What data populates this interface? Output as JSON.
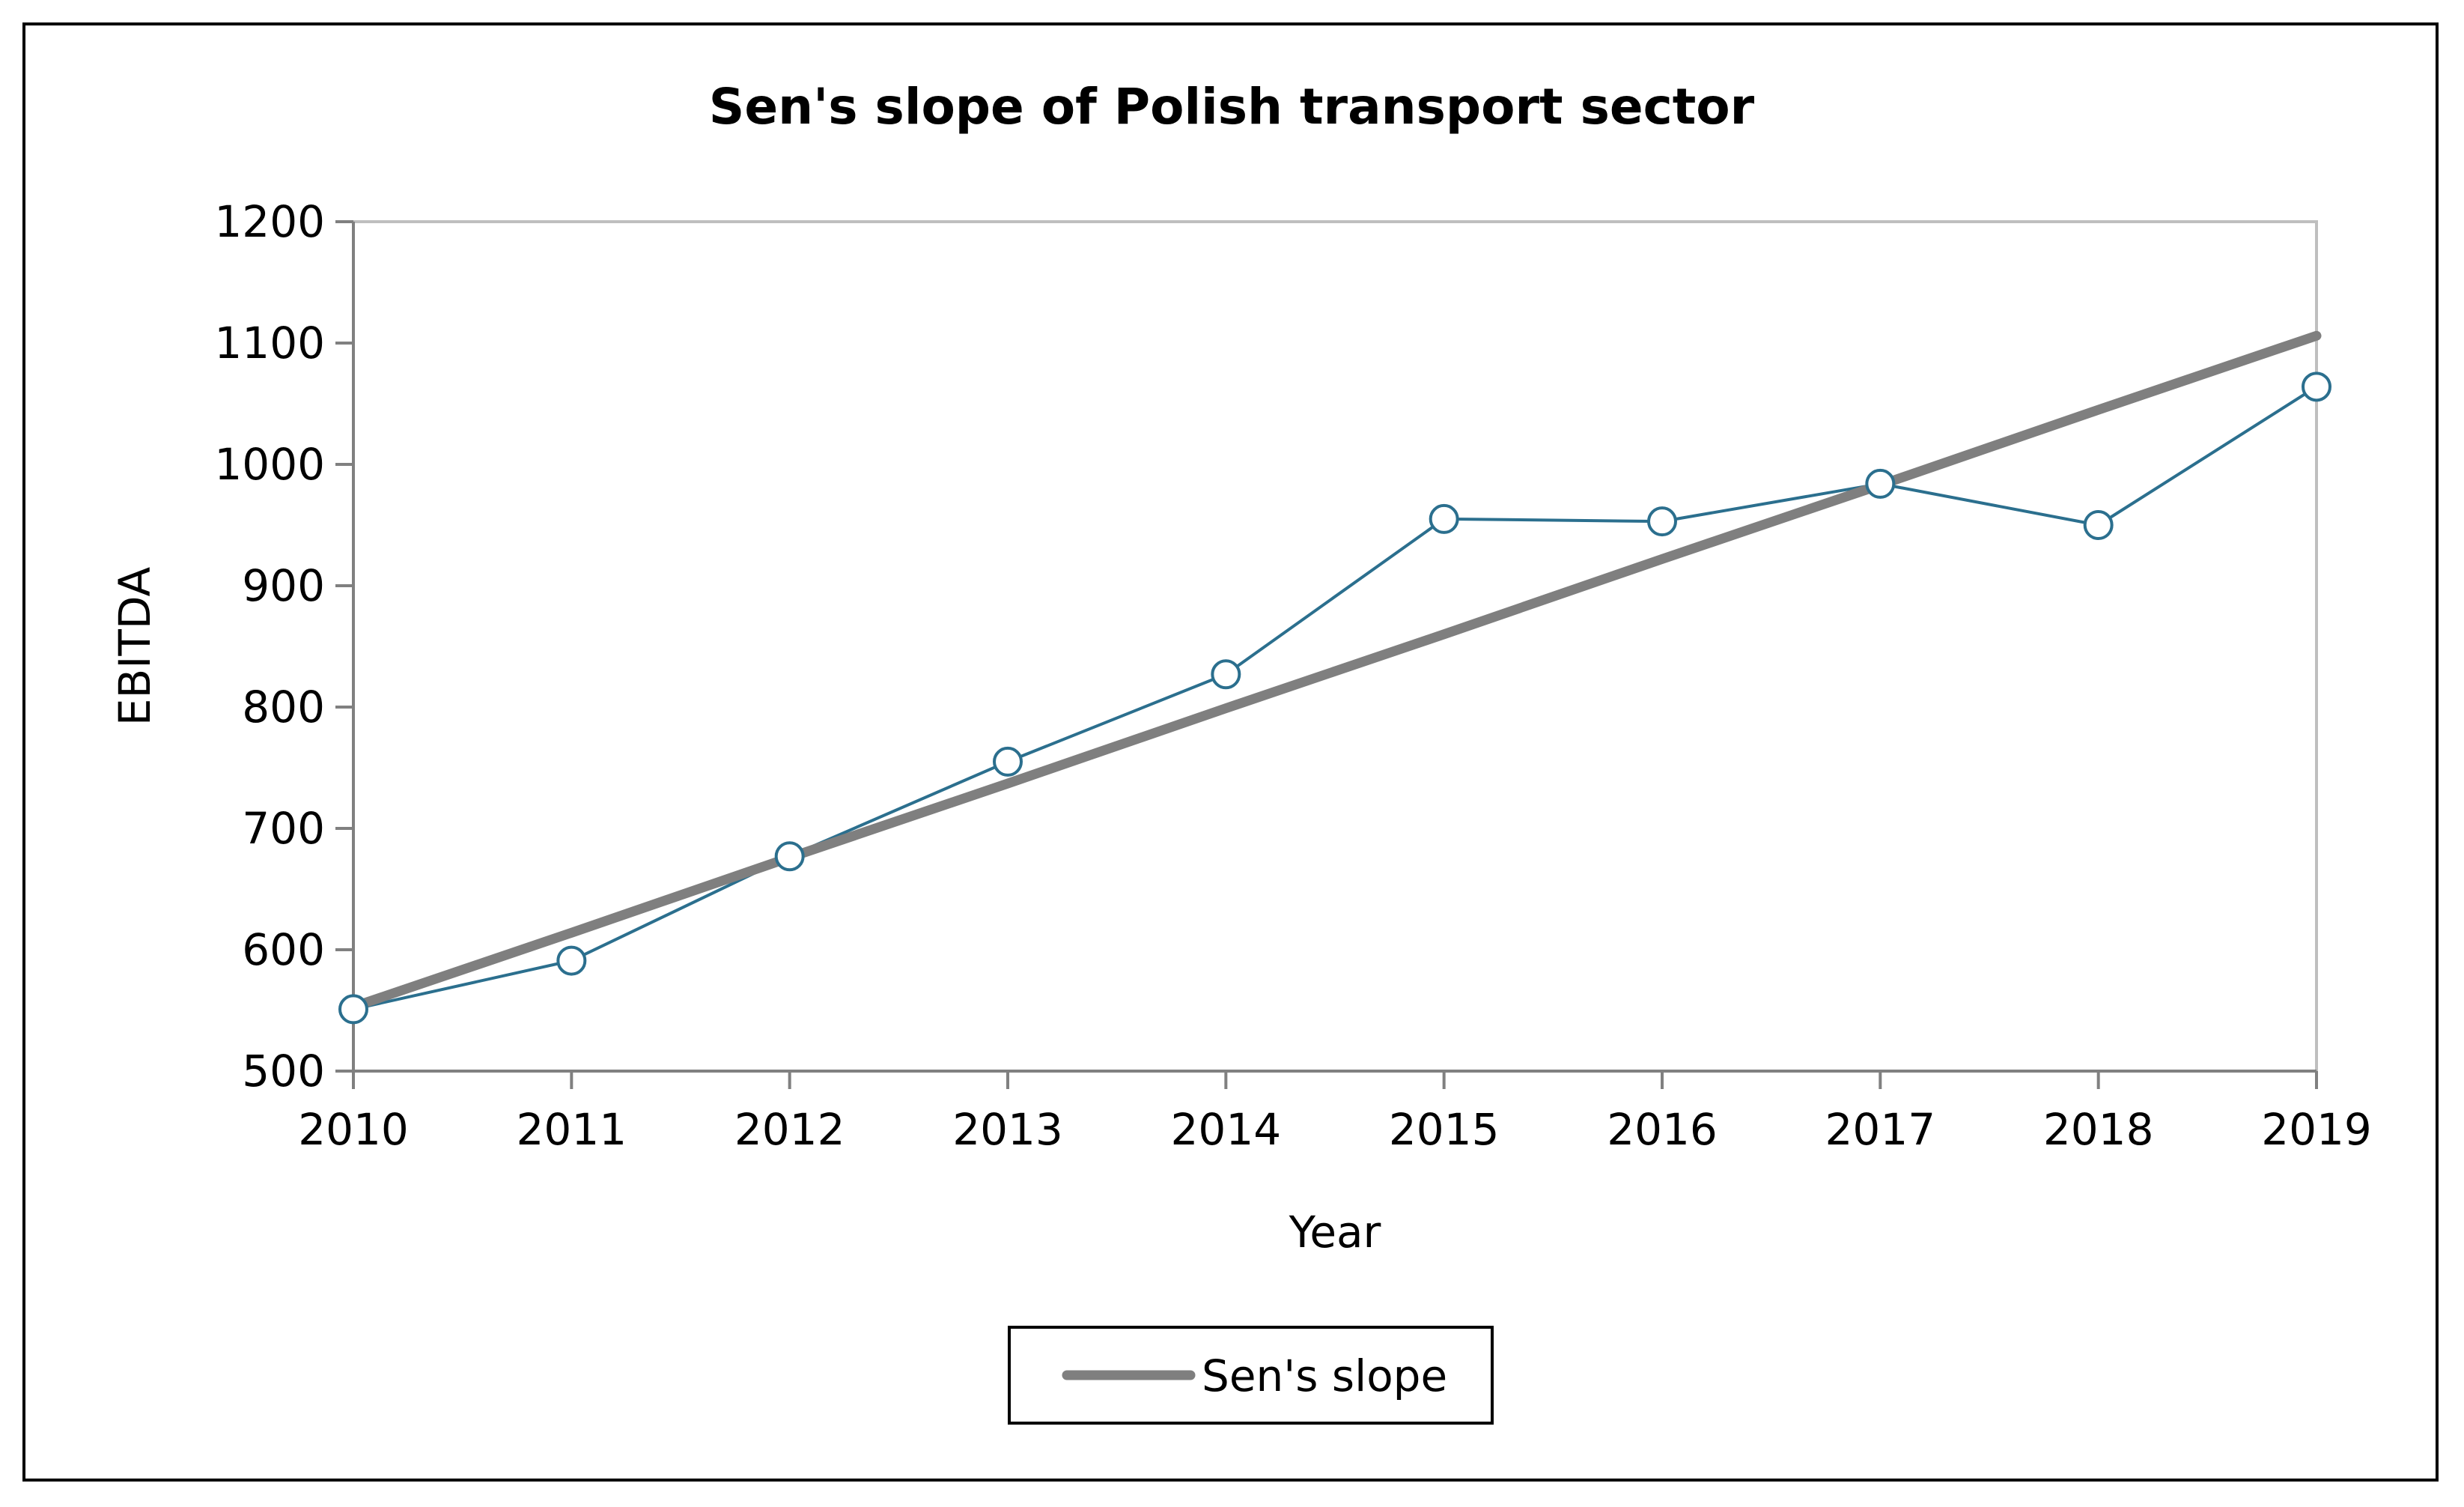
{
  "chart_data": {
    "type": "line",
    "title": "Sen's slope of Polish transport sector",
    "xlabel": "Year",
    "ylabel": "EBITDA",
    "ylim": [
      500,
      1200
    ],
    "yticks": [
      "500",
      "600",
      "700",
      "800",
      "900",
      "1000",
      "1100",
      "1200"
    ],
    "categories": [
      "2010",
      "2011",
      "2012",
      "2013",
      "2014",
      "2015",
      "2016",
      "2017",
      "2018",
      "2019"
    ],
    "series": [
      {
        "values": [
          551,
          591,
          677,
          755,
          827,
          955,
          953,
          984,
          950,
          1064
        ],
        "color": "#2b6f8e",
        "marker": "circle-open"
      },
      {
        "name": "Sen's slope",
        "values": [
          553,
          614,
          676,
          737,
          799,
          860,
          922,
          983,
          1045,
          1106
        ],
        "color": "#7f7f7f"
      }
    ],
    "legend": {
      "position": "bottom",
      "entries": [
        "Sen's slope"
      ]
    },
    "grid": false
  }
}
